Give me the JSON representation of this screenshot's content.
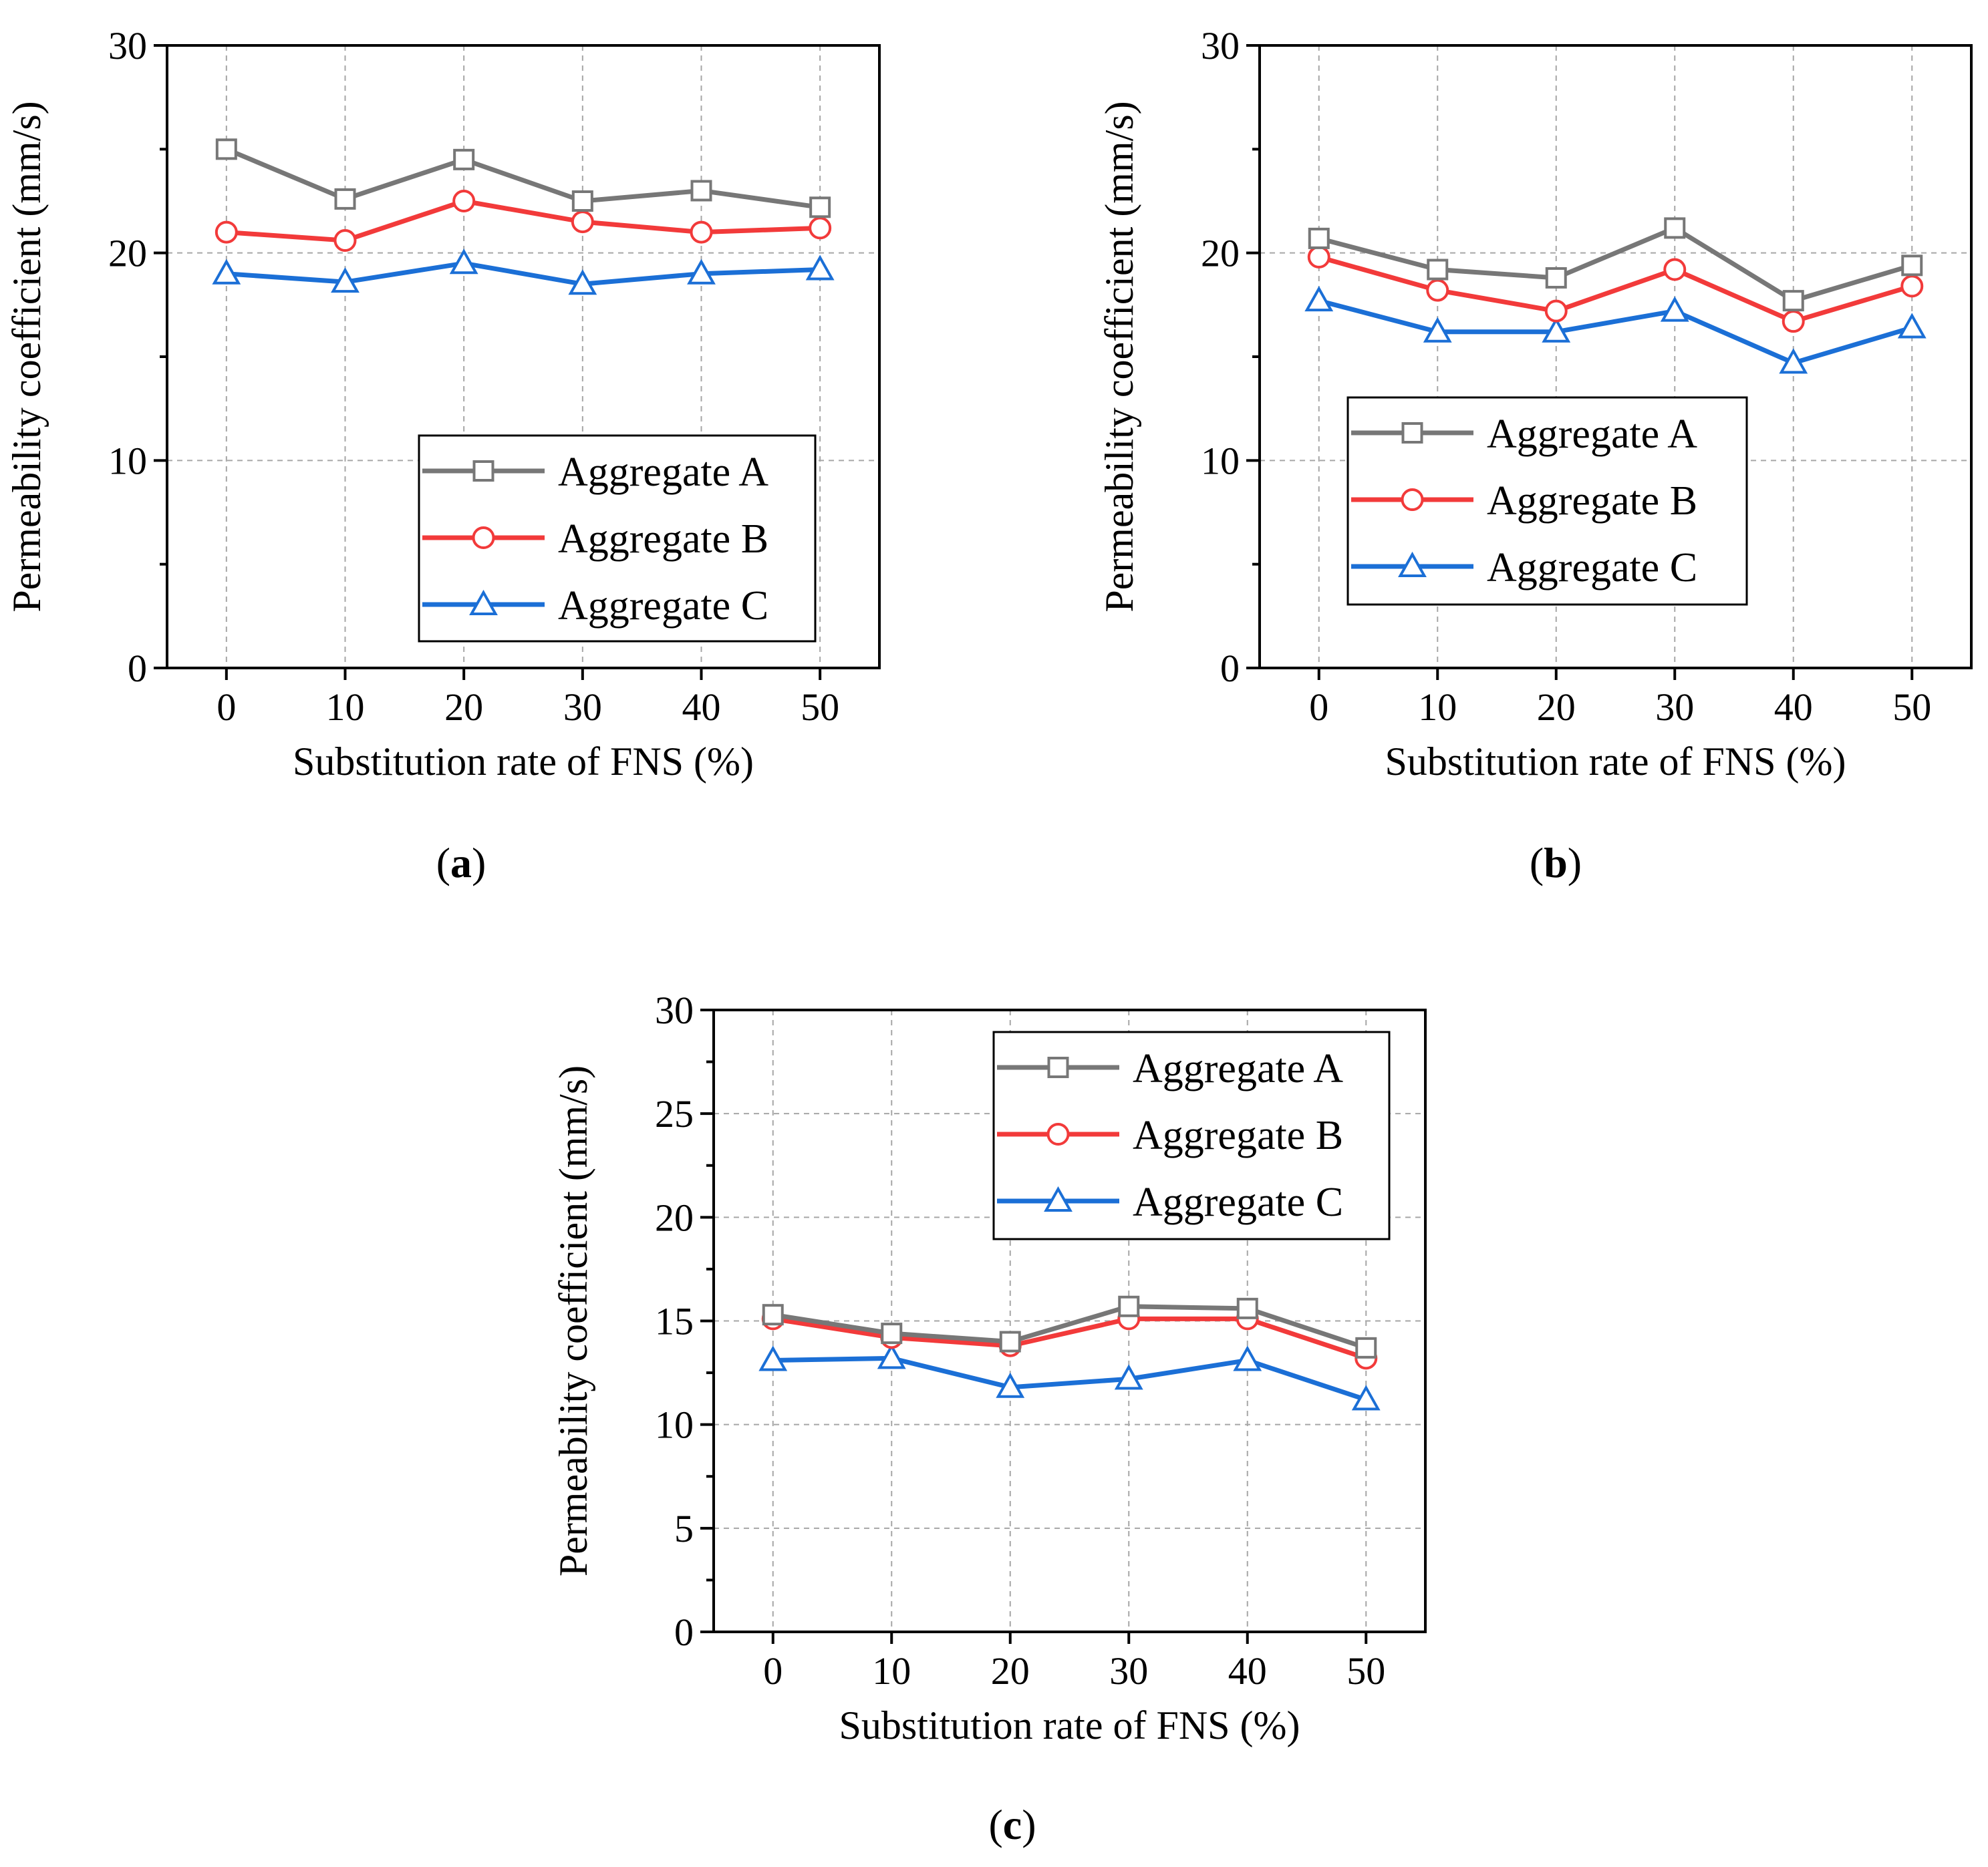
{
  "chart_data": [
    {
      "type": "line",
      "panel_label": "a",
      "title": "",
      "xlabel": "Substitution rate of FNS (%)",
      "ylabel": "Permeability coefficient (mm/s)",
      "x": [
        0,
        10,
        20,
        30,
        40,
        50
      ],
      "xticks": [
        "0",
        "10",
        "20",
        "30",
        "40",
        "50"
      ],
      "xlim": [
        -5,
        55
      ],
      "ylim": [
        0,
        30
      ],
      "yticks": [
        0,
        10,
        20,
        30
      ],
      "yminor_step": 5,
      "grid": true,
      "legend_position": "bottom-right",
      "series": [
        {
          "name": "Aggregate A",
          "marker": "square",
          "color": "#777777",
          "values": [
            25.0,
            22.6,
            24.5,
            22.5,
            23.0,
            22.2
          ]
        },
        {
          "name": "Aggregate B",
          "marker": "circle",
          "color": "#F23A3A",
          "values": [
            21.0,
            20.6,
            22.5,
            21.5,
            21.0,
            21.2
          ]
        },
        {
          "name": "Aggregate C",
          "marker": "triangle",
          "color": "#1B6FD6",
          "values": [
            19.0,
            18.6,
            19.5,
            18.5,
            19.0,
            19.2
          ]
        }
      ]
    },
    {
      "type": "line",
      "panel_label": "b",
      "title": "",
      "xlabel": "Substitution rate of FNS (%)",
      "ylabel": "Permeability coefficient (mm/s)",
      "x": [
        0,
        10,
        20,
        30,
        40,
        50
      ],
      "xticks": [
        "0",
        "10",
        "20",
        "30",
        "40",
        "50"
      ],
      "xlim": [
        -5,
        55
      ],
      "ylim": [
        0,
        30
      ],
      "yticks": [
        0,
        10,
        20,
        30
      ],
      "yminor_step": 5,
      "grid": true,
      "legend_position": "bottom-right",
      "series": [
        {
          "name": "Aggregate A",
          "marker": "square",
          "color": "#777777",
          "values": [
            20.7,
            19.2,
            18.8,
            21.2,
            17.7,
            19.4
          ]
        },
        {
          "name": "Aggregate B",
          "marker": "circle",
          "color": "#F23A3A",
          "values": [
            19.8,
            18.2,
            17.2,
            19.2,
            16.7,
            18.4
          ]
        },
        {
          "name": "Aggregate C",
          "marker": "triangle",
          "color": "#1B6FD6",
          "values": [
            17.7,
            16.2,
            16.2,
            17.2,
            14.7,
            16.4
          ]
        }
      ]
    },
    {
      "type": "line",
      "panel_label": "c",
      "title": "",
      "xlabel": "Substitution rate of FNS (%)",
      "ylabel": "Permeability coefficient (mm/s)",
      "x": [
        0,
        10,
        20,
        30,
        40,
        50
      ],
      "xticks": [
        "0",
        "10",
        "20",
        "30",
        "40",
        "50"
      ],
      "xlim": [
        -5,
        55
      ],
      "ylim": [
        0,
        30
      ],
      "yticks": [
        0,
        5,
        10,
        15,
        20,
        25,
        30
      ],
      "yminor_step": 2.5,
      "grid": true,
      "legend_position": "top-right",
      "series": [
        {
          "name": "Aggregate A",
          "marker": "square",
          "color": "#777777",
          "values": [
            15.3,
            14.4,
            14.0,
            15.7,
            15.6,
            13.7
          ]
        },
        {
          "name": "Aggregate B",
          "marker": "circle",
          "color": "#F23A3A",
          "values": [
            15.1,
            14.2,
            13.8,
            15.1,
            15.1,
            13.2
          ]
        },
        {
          "name": "Aggregate C",
          "marker": "triangle",
          "color": "#1B6FD6",
          "values": [
            13.1,
            13.2,
            11.8,
            12.2,
            13.1,
            11.2
          ]
        }
      ]
    }
  ]
}
